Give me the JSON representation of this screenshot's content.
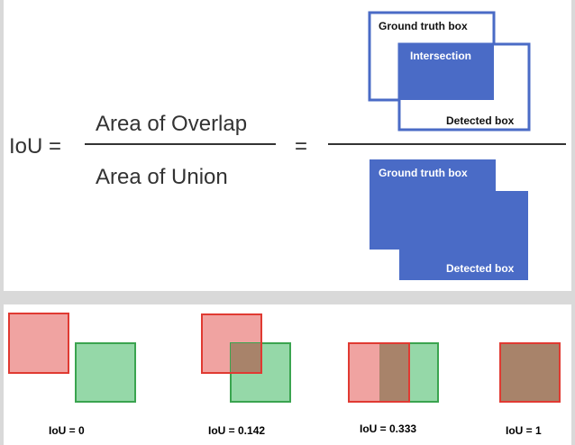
{
  "formula": {
    "lhs": "IoU =",
    "numerator": "Area of Overlap",
    "denominator": "Area of Union",
    "equals": "="
  },
  "overlap_diagram": {
    "ground_truth_label": "Ground truth box",
    "intersection_label": "Intersection",
    "detected_label": "Detected box"
  },
  "union_diagram": {
    "ground_truth_label": "Ground truth box",
    "detected_label": "Detected box"
  },
  "examples": [
    {
      "label": "IoU = 0"
    },
    {
      "label": "IoU = 0.142"
    },
    {
      "label": "IoU = 0.333"
    },
    {
      "label": "IoU = 1"
    }
  ],
  "colors": {
    "box_blue": "#4a6bc6",
    "outline_blue": "#4a6bc6",
    "red_fill": "#f0a3a1",
    "red_stroke": "#e03a32",
    "green_fill": "#95d8a8",
    "green_stroke": "#3aa44f",
    "overlap_fill": "#a8836a"
  }
}
